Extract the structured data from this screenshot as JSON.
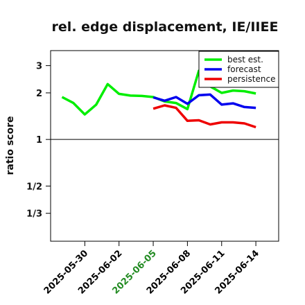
{
  "chart_data": {
    "type": "line",
    "title": "rel. edge displacement, IE/IIEE",
    "xlabel": "",
    "ylabel": "ratio score",
    "y_scale": "log",
    "y_ticks": [
      {
        "value": 0.3333,
        "label": "1/3"
      },
      {
        "value": 0.5,
        "label": "1/2"
      },
      {
        "value": 1,
        "label": "1"
      },
      {
        "value": 2,
        "label": "2"
      },
      {
        "value": 3,
        "label": "3"
      }
    ],
    "ylim": [
      0.22,
      3.75
    ],
    "xlim": [
      "2025-05-27",
      "2025-06-16"
    ],
    "x_ticks": [
      {
        "date": "2025-05-30",
        "label": "2025-05-30",
        "color": "#000000"
      },
      {
        "date": "2025-06-02",
        "label": "2025-06-02",
        "color": "#000000"
      },
      {
        "date": "2025-06-05",
        "label": "2025-06-05",
        "color": "#228b22"
      },
      {
        "date": "2025-06-08",
        "label": "2025-06-08",
        "color": "#000000"
      },
      {
        "date": "2025-06-11",
        "label": "2025-06-11",
        "color": "#000000"
      },
      {
        "date": "2025-06-14",
        "label": "2025-06-14",
        "color": "#000000"
      }
    ],
    "reference_line": 1,
    "grid": false,
    "legend_position": "top-right",
    "series": [
      {
        "name": "best est.",
        "color": "#00ee00",
        "points": [
          [
            "2025-05-28",
            1.88
          ],
          [
            "2025-05-29",
            1.72
          ],
          [
            "2025-05-30",
            1.45
          ],
          [
            "2025-05-31",
            1.68
          ],
          [
            "2025-06-01",
            2.28
          ],
          [
            "2025-06-02",
            1.97
          ],
          [
            "2025-06-03",
            1.92
          ],
          [
            "2025-06-04",
            1.91
          ],
          [
            "2025-06-05",
            1.88
          ],
          [
            "2025-06-06",
            1.76
          ],
          [
            "2025-06-07",
            1.72
          ],
          [
            "2025-06-08",
            1.57
          ],
          [
            "2025-06-09",
            2.78
          ],
          [
            "2025-06-10",
            2.2
          ],
          [
            "2025-06-11",
            2.0
          ],
          [
            "2025-06-12",
            2.07
          ],
          [
            "2025-06-13",
            2.05
          ],
          [
            "2025-06-14",
            1.98
          ]
        ]
      },
      {
        "name": "forecast",
        "color": "#0000ee",
        "points": [
          [
            "2025-06-05",
            1.87
          ],
          [
            "2025-06-06",
            1.78
          ],
          [
            "2025-06-07",
            1.88
          ],
          [
            "2025-06-08",
            1.7
          ],
          [
            "2025-06-09",
            1.93
          ],
          [
            "2025-06-10",
            1.95
          ],
          [
            "2025-06-11",
            1.68
          ],
          [
            "2025-06-12",
            1.71
          ],
          [
            "2025-06-13",
            1.62
          ],
          [
            "2025-06-14",
            1.6
          ]
        ]
      },
      {
        "name": "persistence",
        "color": "#ee0000",
        "points": [
          [
            "2025-06-05",
            1.58
          ],
          [
            "2025-06-06",
            1.66
          ],
          [
            "2025-06-07",
            1.6
          ],
          [
            "2025-06-08",
            1.32
          ],
          [
            "2025-06-09",
            1.33
          ],
          [
            "2025-06-10",
            1.25
          ],
          [
            "2025-06-11",
            1.29
          ],
          [
            "2025-06-12",
            1.29
          ],
          [
            "2025-06-13",
            1.27
          ],
          [
            "2025-06-14",
            1.2
          ]
        ]
      }
    ]
  }
}
